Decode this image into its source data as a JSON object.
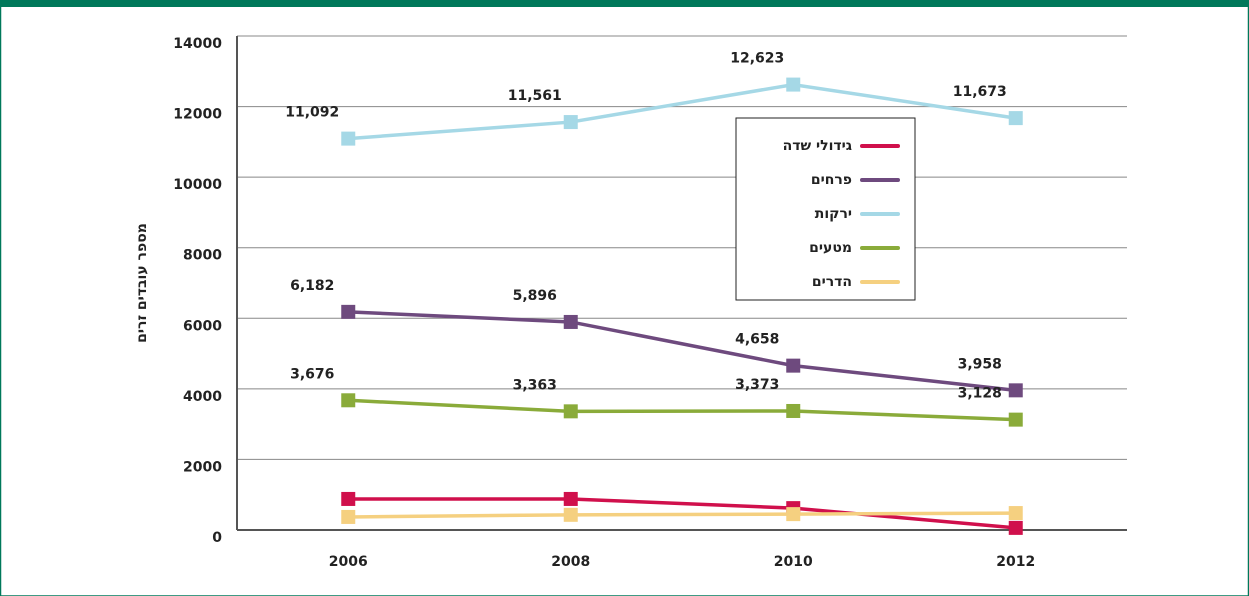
{
  "chart_data": {
    "type": "line",
    "y_label": "מספר עובדים זרים",
    "categories": [
      "2006",
      "2008",
      "2010",
      "2012"
    ],
    "series": [
      {
        "name": "גידולי שדה",
        "color": "#d0104c",
        "values": [
          880,
          880,
          620,
          60
        ]
      },
      {
        "name": "פרחים",
        "color": "#6e4a7e",
        "values": [
          6182,
          5896,
          4658,
          3958
        ],
        "value_labels": [
          "6,182",
          "5,896",
          "4,658",
          "3,958"
        ]
      },
      {
        "name": "ירקות",
        "color": "#a5d8e6",
        "values": [
          11092,
          11561,
          12623,
          11673
        ],
        "value_labels": [
          "11,092",
          "11,561",
          "12,623",
          "11,673"
        ]
      },
      {
        "name": "מטעים",
        "color": "#8aab3a",
        "values": [
          3676,
          3363,
          3373,
          3128
        ],
        "value_labels": [
          "3,676",
          "3,363",
          "3,373",
          "3,128"
        ]
      },
      {
        "name": "הדרים",
        "color": "#f5d080",
        "values": [
          370,
          430,
          450,
          480
        ]
      }
    ],
    "ylim": [
      0,
      14000
    ],
    "yticks": [
      0,
      2000,
      4000,
      6000,
      8000,
      10000,
      12000,
      14000
    ],
    "grid": true
  }
}
